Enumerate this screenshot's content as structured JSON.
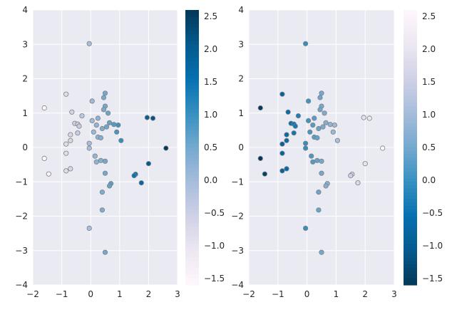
{
  "chart_data": [
    {
      "type": "scatter",
      "colormap": "PuBu",
      "xlim": [
        -2,
        3
      ],
      "ylim": [
        -4,
        4
      ],
      "xticks": [
        "−2",
        "−1",
        "0",
        "1",
        "2",
        "3"
      ],
      "yticks": [
        "−4",
        "−3",
        "−2",
        "−1",
        "0",
        "1",
        "2",
        "3",
        "4"
      ],
      "grid": true,
      "colorbar": {
        "range": [
          -1.6,
          2.6
        ],
        "ticks": [
          -1.5,
          -1.0,
          -0.5,
          0.0,
          0.5,
          1.0,
          1.5,
          2.0,
          2.5
        ],
        "tick_labels": [
          "−1.5",
          "−1.0",
          "−0.5",
          "0.0",
          "0.5",
          "1.0",
          "1.5",
          "2.0",
          "2.5"
        ]
      },
      "points": [
        [
          -0.05,
          3.02
        ],
        [
          -1.6,
          1.15
        ],
        [
          -1.6,
          -0.32
        ],
        [
          -1.45,
          -0.77
        ],
        [
          -0.85,
          1.55
        ],
        [
          -0.65,
          1.03
        ],
        [
          -0.7,
          0.37
        ],
        [
          -0.85,
          0.1
        ],
        [
          -0.7,
          0.2
        ],
        [
          -0.85,
          -0.17
        ],
        [
          -0.55,
          0.7
        ],
        [
          -0.45,
          0.68
        ],
        [
          -0.45,
          0.42
        ],
        [
          -0.4,
          0.62
        ],
        [
          -0.3,
          0.92
        ],
        [
          -0.85,
          -0.68
        ],
        [
          -0.7,
          -0.62
        ],
        [
          0.05,
          1.35
        ],
        [
          0.5,
          1.58
        ],
        [
          0.45,
          1.45
        ],
        [
          0.5,
          1.2
        ],
        [
          0.45,
          1.1
        ],
        [
          0.6,
          1.0
        ],
        [
          0.25,
          0.85
        ],
        [
          0.05,
          0.78
        ],
        [
          0.65,
          0.72
        ],
        [
          0.2,
          0.65
        ],
        [
          0.8,
          0.67
        ],
        [
          0.55,
          0.6
        ],
        [
          0.4,
          0.55
        ],
        [
          0.1,
          0.45
        ],
        [
          0.25,
          0.3
        ],
        [
          0.35,
          0.28
        ],
        [
          -0.05,
          0.12
        ],
        [
          0.95,
          0.65
        ],
        [
          0.9,
          0.45
        ],
        [
          1.05,
          0.2
        ],
        [
          -0.05,
          -0.02
        ],
        [
          0.15,
          -0.25
        ],
        [
          0.35,
          -0.38
        ],
        [
          0.2,
          -0.42
        ],
        [
          0.5,
          -0.4
        ],
        [
          0.5,
          -0.75
        ],
        [
          0.7,
          -1.05
        ],
        [
          0.65,
          -1.12
        ],
        [
          0.4,
          -1.3
        ],
        [
          0.4,
          -1.82
        ],
        [
          0.5,
          -3.05
        ],
        [
          -0.05,
          -2.35
        ],
        [
          1.55,
          -0.78
        ],
        [
          1.5,
          -0.82
        ],
        [
          1.75,
          -1.03
        ],
        [
          2.0,
          -0.47
        ],
        [
          1.95,
          0.87
        ],
        [
          2.15,
          0.85
        ],
        [
          2.6,
          -0.02
        ]
      ]
    },
    {
      "type": "scatter",
      "colormap": "PuBu_r",
      "xlim": [
        -2,
        3
      ],
      "ylim": [
        -4,
        4
      ],
      "xticks": [
        "−2",
        "−1",
        "0",
        "1",
        "2",
        "3"
      ],
      "yticks": [
        "−4",
        "−3",
        "−2",
        "−1",
        "0",
        "1",
        "2",
        "3",
        "4"
      ],
      "grid": true,
      "colorbar": {
        "range": [
          -1.6,
          2.6
        ],
        "ticks": [
          -1.5,
          -1.0,
          -0.5,
          0.0,
          0.5,
          1.0,
          1.5,
          2.0,
          2.5
        ],
        "tick_labels": [
          "−1.5",
          "−1.0",
          "−0.5",
          "0.0",
          "0.5",
          "1.0",
          "1.5",
          "2.0",
          "2.5"
        ]
      },
      "points": "same as first panel"
    }
  ]
}
